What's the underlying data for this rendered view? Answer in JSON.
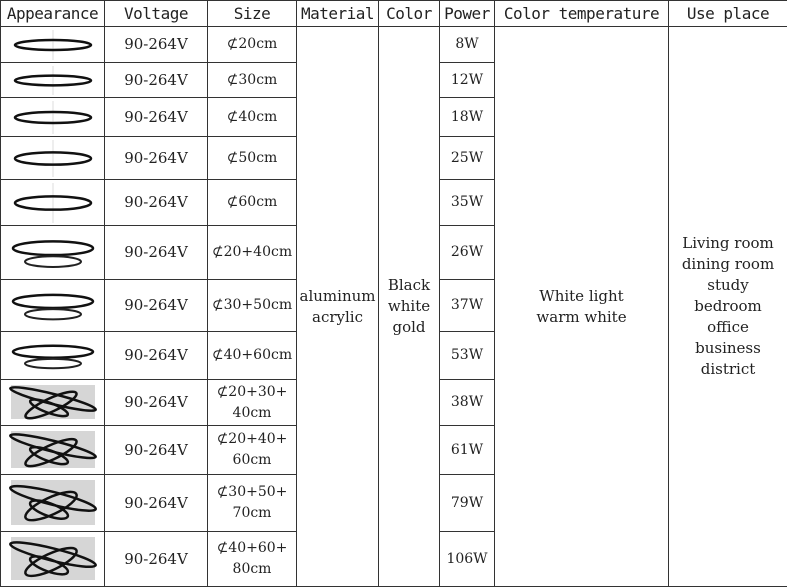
{
  "headers": [
    "Appearance",
    "Voltage",
    "Size",
    "Material",
    "Color",
    "Power",
    "Color temperature",
    "Use place"
  ],
  "rows": [
    {
      "icon": "single-ring",
      "voltage": "90-264V",
      "size": "⊄20cm",
      "power": "8W"
    },
    {
      "icon": "single-ring",
      "voltage": "90-264V",
      "size": "⊄30cm",
      "power": "12W"
    },
    {
      "icon": "single-ring",
      "voltage": "90-264V",
      "size": "⊄40cm",
      "power": "18W"
    },
    {
      "icon": "single-ring",
      "voltage": "90-264V",
      "size": "⊄50cm",
      "power": "25W"
    },
    {
      "icon": "single-ring",
      "voltage": "90-264V",
      "size": "⊄60cm",
      "power": "35W"
    },
    {
      "icon": "double-ring",
      "voltage": "90-264V",
      "size": "⊄20+40cm",
      "power": "26W"
    },
    {
      "icon": "double-ring",
      "voltage": "90-264V",
      "size": "⊄30+50cm",
      "power": "37W"
    },
    {
      "icon": "double-ring",
      "voltage": "90-264V",
      "size": "⊄40+60cm",
      "power": "53W"
    },
    {
      "icon": "triple-ring",
      "voltage": "90-264V",
      "size": "⊄20+30+\n40cm",
      "power": "38W"
    },
    {
      "icon": "triple-ring",
      "voltage": "90-264V",
      "size": "⊄20+40+\n60cm",
      "power": "61W"
    },
    {
      "icon": "triple-ring",
      "voltage": "90-264V",
      "size": "⊄30+50+\n70cm",
      "power": "79W"
    },
    {
      "icon": "triple-ring",
      "voltage": "90-264V",
      "size": "⊄40+60+\n80cm",
      "power": "106W"
    }
  ],
  "material": "aluminum\nacrylic",
  "color": "Black\nwhite\ngold",
  "color_temperature": "White light\nwarm white",
  "use_place": "Living room\ndining room\nstudy\nbedroom\noffice\nbusiness\ndistrict"
}
